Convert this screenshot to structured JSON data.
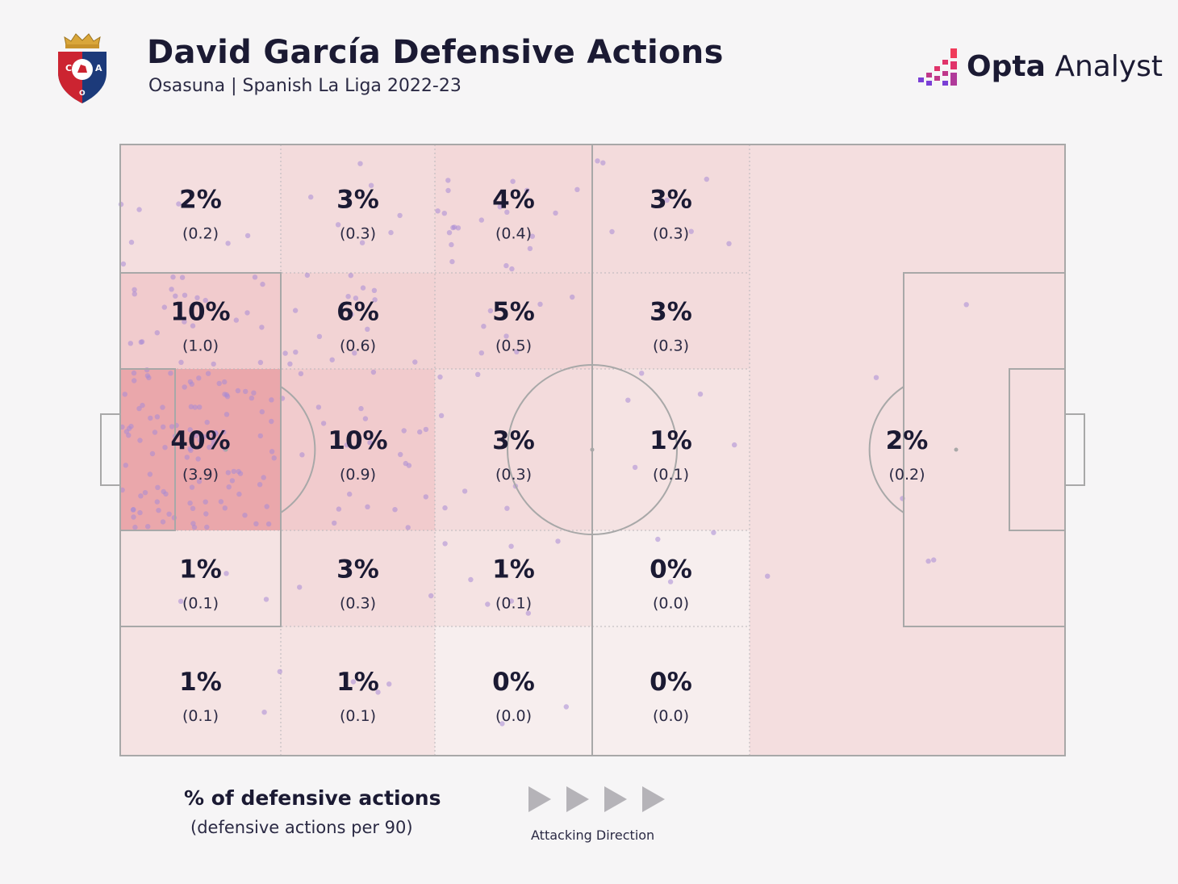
{
  "header": {
    "title": "David García Defensive Actions",
    "subtitle": "Osasuna | Spanish La Liga 2022-23",
    "crest_letters": [
      "C",
      "A",
      "O"
    ],
    "brand_word1": "Opta",
    "brand_word2": "Analyst"
  },
  "chart_data": {
    "type": "heatmap",
    "title": "David García Defensive Actions",
    "subtitle": "Osasuna | Spanish La Liga 2022-23",
    "rows_top_to_bottom": 5,
    "cols_defending_to_attacking": 6,
    "zones": [
      {
        "row": 0,
        "col": 0,
        "pct": "2%",
        "per90": "(0.2)",
        "value": 2
      },
      {
        "row": 0,
        "col": 1,
        "pct": "3%",
        "per90": "(0.3)",
        "value": 3
      },
      {
        "row": 0,
        "col": 2,
        "pct": "4%",
        "per90": "(0.4)",
        "value": 4
      },
      {
        "row": 0,
        "col": 3,
        "pct": "3%",
        "per90": "(0.3)",
        "value": 3
      },
      {
        "row": 1,
        "col": 0,
        "pct": "10%",
        "per90": "(1.0)",
        "value": 10
      },
      {
        "row": 1,
        "col": 1,
        "pct": "6%",
        "per90": "(0.6)",
        "value": 6
      },
      {
        "row": 1,
        "col": 2,
        "pct": "5%",
        "per90": "(0.5)",
        "value": 5
      },
      {
        "row": 1,
        "col": 3,
        "pct": "3%",
        "per90": "(0.3)",
        "value": 3
      },
      {
        "row": 2,
        "col": 0,
        "pct": "40%",
        "per90": "(3.9)",
        "value": 40
      },
      {
        "row": 2,
        "col": 1,
        "pct": "10%",
        "per90": "(0.9)",
        "value": 10
      },
      {
        "row": 2,
        "col": 2,
        "pct": "3%",
        "per90": "(0.3)",
        "value": 3
      },
      {
        "row": 2,
        "col": 3,
        "pct": "1%",
        "per90": "(0.1)",
        "value": 1
      },
      {
        "row": 3,
        "col": 0,
        "pct": "1%",
        "per90": "(0.1)",
        "value": 1
      },
      {
        "row": 3,
        "col": 1,
        "pct": "3%",
        "per90": "(0.3)",
        "value": 3
      },
      {
        "row": 3,
        "col": 2,
        "pct": "1%",
        "per90": "(0.1)",
        "value": 1
      },
      {
        "row": 3,
        "col": 3,
        "pct": "0%",
        "per90": "(0.0)",
        "value": 0
      },
      {
        "row": 4,
        "col": 0,
        "pct": "1%",
        "per90": "(0.1)",
        "value": 1
      },
      {
        "row": 4,
        "col": 1,
        "pct": "1%",
        "per90": "(0.1)",
        "value": 1
      },
      {
        "row": 4,
        "col": 2,
        "pct": "0%",
        "per90": "(0.0)",
        "value": 0
      },
      {
        "row": 4,
        "col": 3,
        "pct": "0%",
        "per90": "(0.0)",
        "value": 0
      },
      {
        "row": "0-4",
        "col": "4-5",
        "pct": "2%",
        "per90": "(0.2)",
        "value": 2,
        "merged": true
      }
    ],
    "color_low": "#f7eeee",
    "color_high": "#eaa7ab",
    "dot_color": "#a78bd6",
    "line_color": "#a8a8a8",
    "legend_title": "% of defensive actions",
    "legend_subtitle": "(defensive actions per 90)",
    "direction_label": "Attacking Direction",
    "direction": "left-to-right"
  }
}
